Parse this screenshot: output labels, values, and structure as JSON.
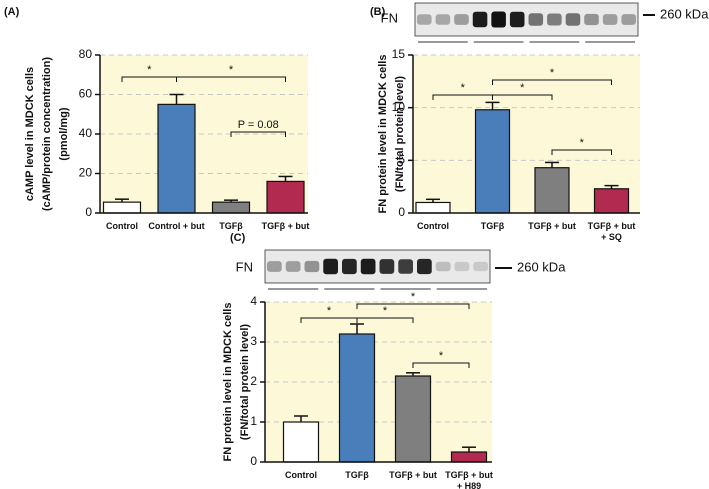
{
  "chart_data": [
    {
      "type": "bar",
      "panel": "(A)",
      "ylabel": [
        "cAMP level in MDCK cells",
        "(cAMP/protein concentration)",
        "(pmol/mg)"
      ],
      "categories": [
        "Control",
        "Control + but",
        "TGFβ",
        "TGFβ + but"
      ],
      "values": [
        5.5,
        55,
        5.5,
        16
      ],
      "errors": [
        1.5,
        5,
        1,
        2.5
      ],
      "colors": [
        "#ffffff",
        "#4a7ebb",
        "#7f7f7f",
        "#b22a50"
      ],
      "ylim": [
        0,
        80
      ],
      "yticks": [
        0,
        20,
        40,
        60,
        80
      ],
      "grid": true,
      "annotations": [
        "*",
        "*",
        "P = 0.08"
      ]
    },
    {
      "type": "bar",
      "panel": "(B)",
      "blot": {
        "label": "FN",
        "marker": "260 kDa"
      },
      "ylabel": [
        "FN protein level in MDCK cells",
        "(FN/total protein level)"
      ],
      "categories": [
        "Control",
        "TGFβ",
        "TGFβ + but",
        "TGFβ + but\n+ SQ"
      ],
      "values": [
        1.0,
        9.8,
        4.3,
        2.3
      ],
      "errors": [
        0.3,
        0.7,
        0.5,
        0.3
      ],
      "colors": [
        "#ffffff",
        "#4a7ebb",
        "#7f7f7f",
        "#b22a50"
      ],
      "ylim": [
        0,
        15
      ],
      "yticks": [
        0,
        5,
        10,
        15
      ],
      "grid": true,
      "annotations": [
        "*",
        "*",
        "*",
        "*"
      ]
    },
    {
      "type": "bar",
      "panel": "(C)",
      "blot": {
        "label": "FN",
        "marker": "260 kDa"
      },
      "ylabel": [
        "FN protein level in MDCK cells",
        "(FN/total protein level)"
      ],
      "categories": [
        "Control",
        "TGFβ",
        "TGFβ + but",
        "TGFβ + but\n+ H89"
      ],
      "values": [
        1.0,
        3.2,
        2.15,
        0.25
      ],
      "errors": [
        0.15,
        0.25,
        0.08,
        0.12
      ],
      "colors": [
        "#ffffff",
        "#4a7ebb",
        "#7f7f7f",
        "#b22a50"
      ],
      "ylim": [
        0,
        4
      ],
      "yticks": [
        0,
        1,
        2,
        3,
        4
      ],
      "grid": true,
      "annotations": [
        "*",
        "*",
        "*",
        "*"
      ]
    }
  ]
}
